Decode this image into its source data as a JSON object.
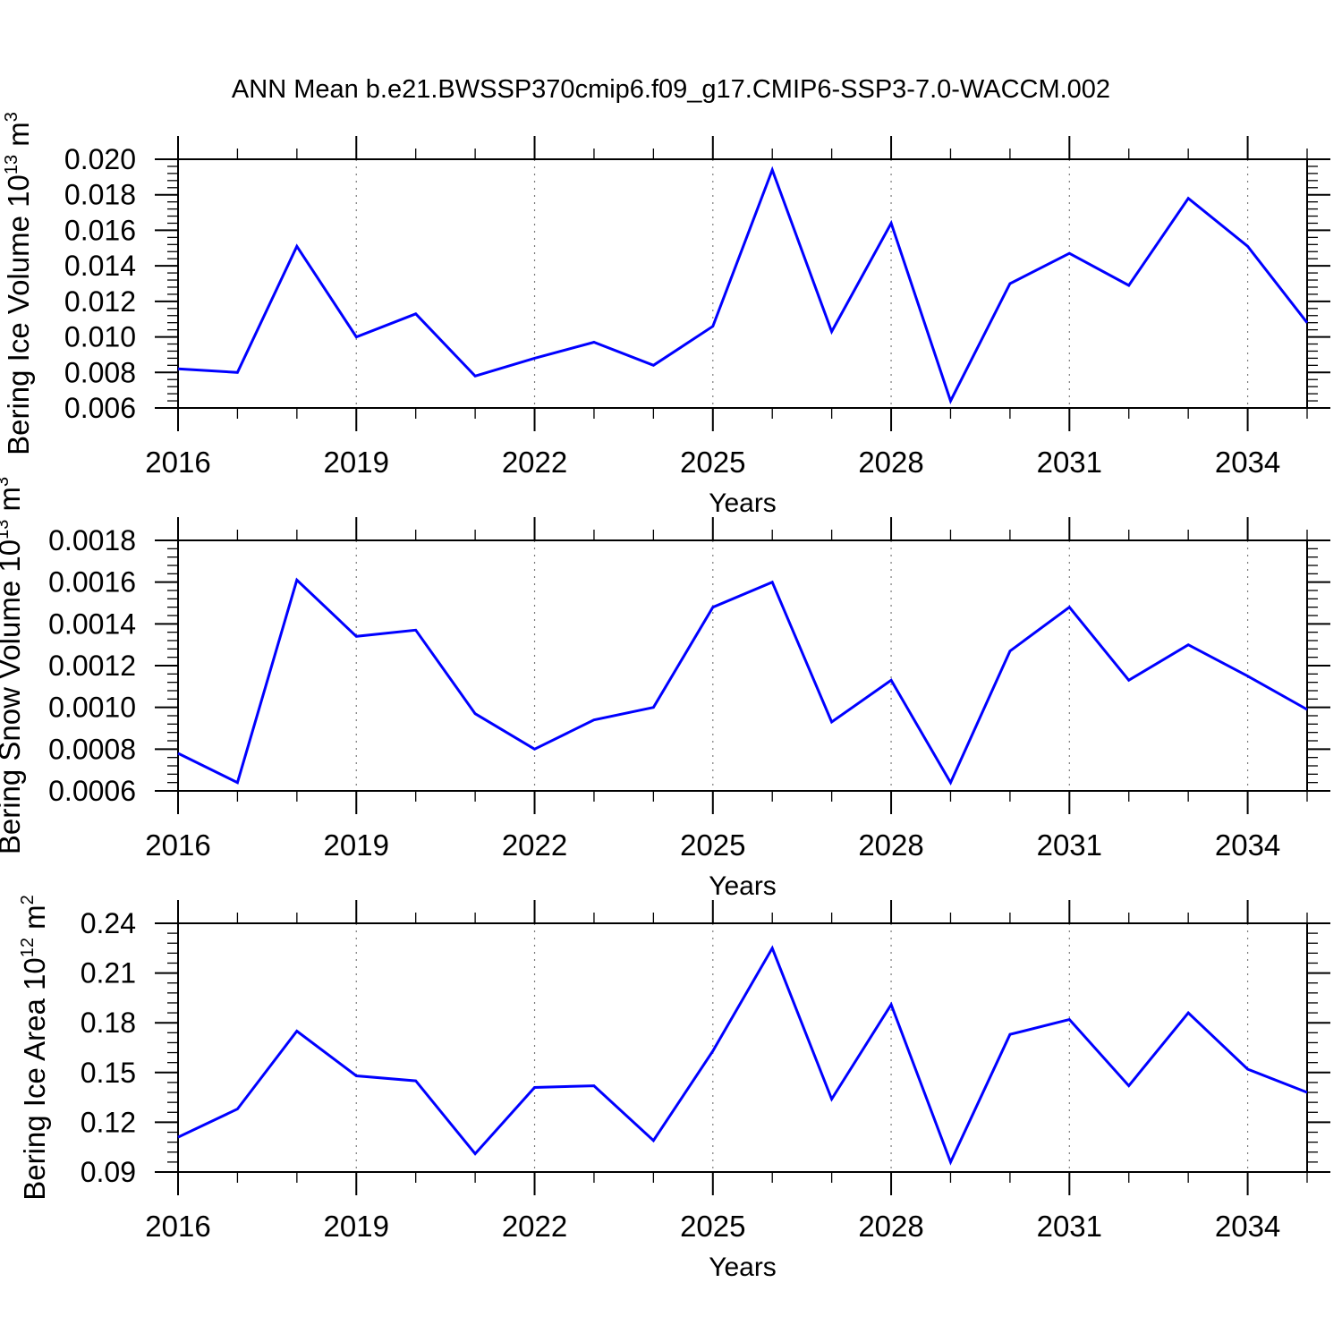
{
  "title": "ANN Mean b.e21.BWSSP370cmip6.f09_g17.CMIP6-SSP3-7.0-WACCM.002",
  "x_axis": {
    "label": "Years",
    "years": [
      2016,
      2017,
      2018,
      2019,
      2020,
      2021,
      2022,
      2023,
      2024,
      2025,
      2026,
      2027,
      2028,
      2029,
      2030,
      2031,
      2032,
      2033,
      2034,
      2035
    ],
    "major_ticks": [
      2016,
      2019,
      2022,
      2025,
      2028,
      2031,
      2034
    ],
    "tick_labels": [
      "2016",
      "2019",
      "2022",
      "2025",
      "2028",
      "2031",
      "2034"
    ],
    "gridlines": [
      2019,
      2022,
      2025,
      2028,
      2031,
      2034
    ]
  },
  "style": {
    "line_color": "#0000ff",
    "grid_color": "#7a7a7a",
    "axis_color": "#000000",
    "background": "#ffffff"
  },
  "chart_data": [
    {
      "type": "line",
      "name": "bering-ice-volume",
      "ylabel_segments": [
        {
          "text": "Bering Ice Volume 10",
          "sup": false
        },
        {
          "text": "13",
          "sup": true
        },
        {
          "text": " m",
          "sup": false
        },
        {
          "text": "3",
          "sup": true
        }
      ],
      "xlabel": "Years",
      "ylim": [
        0.006,
        0.02
      ],
      "ytick_step": 0.002,
      "ytick_labels": [
        "0.006",
        "0.008",
        "0.010",
        "0.012",
        "0.014",
        "0.016",
        "0.018",
        "0.020"
      ],
      "x": [
        2016,
        2017,
        2018,
        2019,
        2020,
        2021,
        2022,
        2023,
        2024,
        2025,
        2026,
        2027,
        2028,
        2029,
        2030,
        2031,
        2032,
        2033,
        2034,
        2035
      ],
      "values": [
        0.0082,
        0.008,
        0.0151,
        0.01,
        0.0113,
        0.0078,
        0.0088,
        0.0097,
        0.0084,
        0.0106,
        0.0194,
        0.0103,
        0.0164,
        0.0064,
        0.013,
        0.0147,
        0.0129,
        0.0178,
        0.0151,
        0.0108
      ],
      "grid": true,
      "legend": "none"
    },
    {
      "type": "line",
      "name": "bering-snow-volume",
      "ylabel_segments": [
        {
          "text": "Bering Snow Volume 10",
          "sup": false
        },
        {
          "text": "13",
          "sup": true
        },
        {
          "text": " m",
          "sup": false
        },
        {
          "text": "3",
          "sup": true
        }
      ],
      "xlabel": "Years",
      "ylim": [
        0.0006,
        0.0018
      ],
      "ytick_step": 0.0002,
      "ytick_labels": [
        "0.0006",
        "0.0008",
        "0.0010",
        "0.0012",
        "0.0014",
        "0.0016",
        "0.0018"
      ],
      "x": [
        2016,
        2017,
        2018,
        2019,
        2020,
        2021,
        2022,
        2023,
        2024,
        2025,
        2026,
        2027,
        2028,
        2029,
        2030,
        2031,
        2032,
        2033,
        2034,
        2035
      ],
      "values": [
        0.00078,
        0.00064,
        0.00161,
        0.00134,
        0.00137,
        0.00097,
        0.0008,
        0.00094,
        0.001,
        0.00148,
        0.0016,
        0.00093,
        0.00113,
        0.00064,
        0.00127,
        0.00148,
        0.00113,
        0.0013,
        0.00115,
        0.00099
      ],
      "grid": true,
      "legend": "none"
    },
    {
      "type": "line",
      "name": "bering-ice-area",
      "ylabel_segments": [
        {
          "text": "Bering Ice Area 10",
          "sup": false
        },
        {
          "text": "12",
          "sup": true
        },
        {
          "text": " m",
          "sup": false
        },
        {
          "text": "2",
          "sup": true
        }
      ],
      "xlabel": "Years",
      "ylim": [
        0.09,
        0.24
      ],
      "ytick_step": 0.03,
      "ytick_labels": [
        "0.09",
        "0.12",
        "0.15",
        "0.18",
        "0.21",
        "0.24"
      ],
      "x": [
        2016,
        2017,
        2018,
        2019,
        2020,
        2021,
        2022,
        2023,
        2024,
        2025,
        2026,
        2027,
        2028,
        2029,
        2030,
        2031,
        2032,
        2033,
        2034,
        2035
      ],
      "values": [
        0.111,
        0.128,
        0.175,
        0.148,
        0.145,
        0.101,
        0.141,
        0.142,
        0.109,
        0.163,
        0.225,
        0.134,
        0.191,
        0.096,
        0.173,
        0.182,
        0.142,
        0.186,
        0.152,
        0.138
      ],
      "grid": true,
      "legend": "none"
    }
  ]
}
